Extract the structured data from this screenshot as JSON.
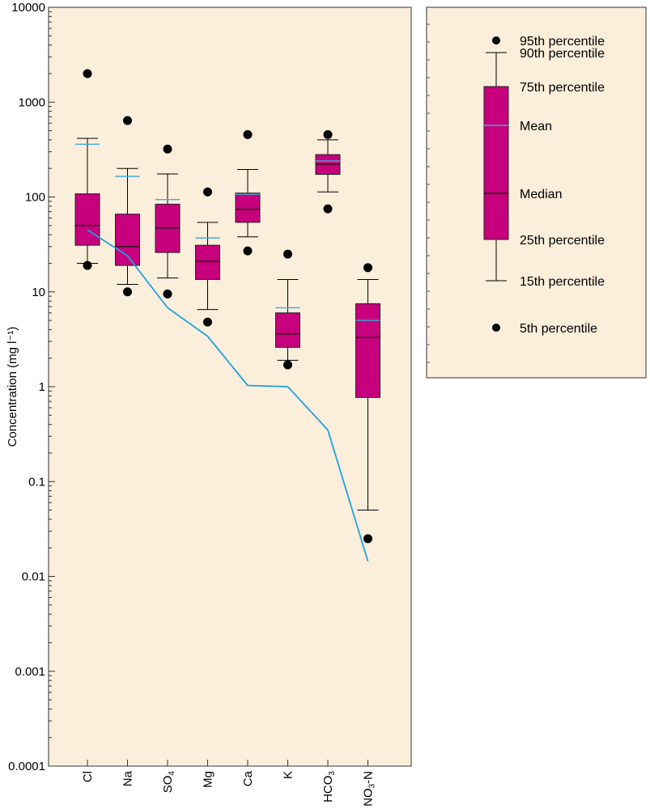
{
  "chart_data": {
    "type": "box",
    "ylabel": "Concentration (mg l⁻¹)",
    "yscale": "log",
    "ylim": [
      0.0001,
      10000
    ],
    "ytick_labels": [
      "10000",
      "1000",
      "100",
      "10",
      "1",
      "0.1",
      "0.01",
      "0.001",
      "0.0001"
    ],
    "categories": [
      {
        "label": "Cl",
        "sub": ""
      },
      {
        "label": "Na",
        "sub": ""
      },
      {
        "label": "SO",
        "sub": "4"
      },
      {
        "label": "Mg",
        "sub": ""
      },
      {
        "label": "Ca",
        "sub": ""
      },
      {
        "label": "K",
        "sub": ""
      },
      {
        "label": "HCO",
        "sub": "3"
      },
      {
        "label": "NO",
        "sub": "3",
        "suffix": "-N"
      }
    ],
    "series": [
      {
        "p5": 19,
        "p15": 20,
        "p25": 31,
        "median": 50,
        "p75": 108,
        "p90": 415,
        "p95": 2000,
        "mean": 360
      },
      {
        "p5": 10,
        "p15": 12,
        "p25": 19,
        "median": 30,
        "p75": 66,
        "p90": 200,
        "p95": 640,
        "mean": 165
      },
      {
        "p5": 9.5,
        "p15": 14,
        "p25": 26,
        "median": 47,
        "p75": 84,
        "p90": 175,
        "p95": 320,
        "mean": 94
      },
      {
        "p5": 4.8,
        "p15": 6.5,
        "p25": 13.5,
        "median": 21,
        "p75": 31,
        "p90": 54,
        "p95": 113,
        "mean": 37
      },
      {
        "p5": 27,
        "p15": 38,
        "p25": 54,
        "median": 74,
        "p75": 110,
        "p90": 195,
        "p95": 455,
        "mean": 107
      },
      {
        "p5": 1.7,
        "p15": 1.9,
        "p25": 2.6,
        "median": 3.6,
        "p75": 6,
        "p90": 13.5,
        "p95": 25,
        "mean": 6.8
      },
      {
        "p5": 75,
        "p15": 113,
        "p25": 173,
        "median": 222,
        "p75": 280,
        "p90": 400,
        "p95": 455,
        "mean": 240
      },
      {
        "p5": 0.025,
        "p15": 0.05,
        "p25": 0.77,
        "median": 3.3,
        "p75": 7.5,
        "p90": 13.5,
        "p95": 18,
        "mean": 5
      }
    ],
    "baseline_line": [
      45,
      24,
      6.8,
      3.4,
      1.03,
      1.0,
      0.35,
      0.0145
    ],
    "colors": {
      "plot_bg": "#fbeedb",
      "box_fill": "#c7007d",
      "mean_line": "#3aace0",
      "baseline_line": "#1ea3e0",
      "median_line": "#000000"
    },
    "legend": {
      "p95": "95th percentile",
      "p90": "90th percentile",
      "p75": "75th percentile",
      "mean": "Mean",
      "median": "Median",
      "p25": "25th percentile",
      "p15": "15th percentile",
      "p5": "5th percentile"
    }
  }
}
